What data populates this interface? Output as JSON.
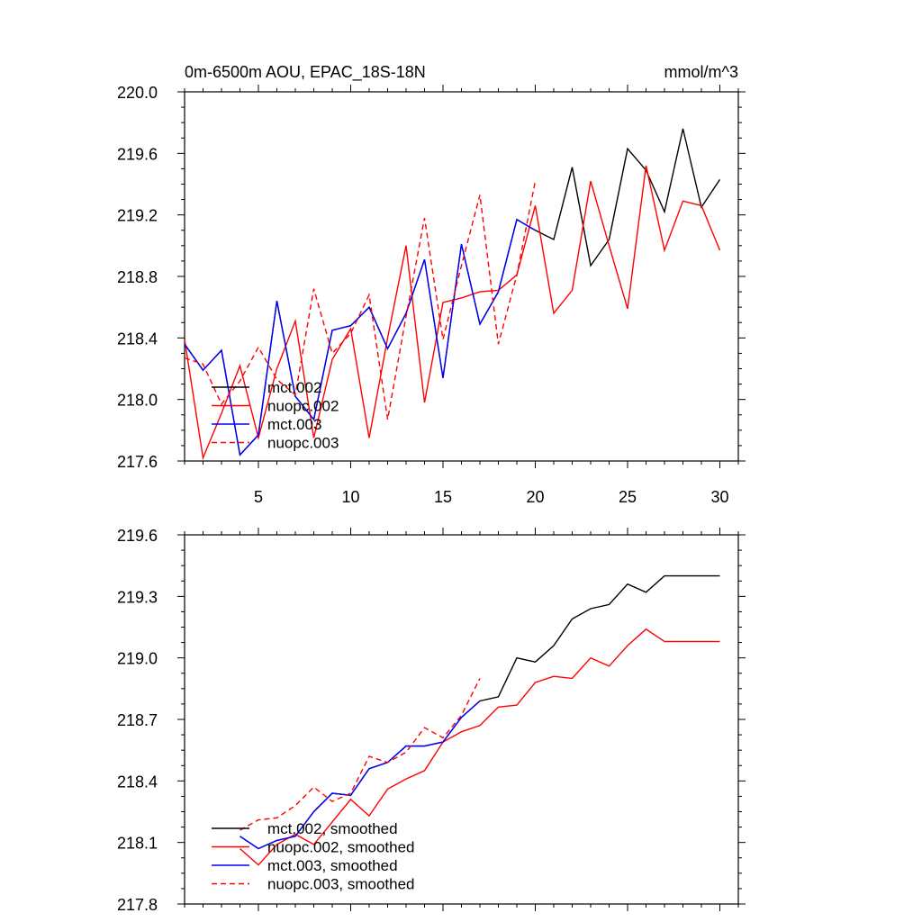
{
  "chart_data": [
    {
      "type": "line",
      "title": "0m-6500m AOU, EPAC_18S-18N",
      "units": "mmol/m^3",
      "xlabel": "",
      "ylabel": "",
      "xlim": [
        1,
        31
      ],
      "ylim": [
        217.6,
        220.0
      ],
      "x_ticks": [
        5,
        10,
        15,
        20,
        25,
        30
      ],
      "y_ticks": [
        "217.6",
        "218.0",
        "218.4",
        "218.8",
        "219.2",
        "219.6",
        "220.0"
      ],
      "legend_position": "bottom-left",
      "series": [
        {
          "name": "mct.002",
          "color": "#000000",
          "dash": "solid",
          "x": [
            1,
            2,
            3,
            4,
            5,
            6,
            7,
            8,
            9,
            10,
            11,
            12,
            13,
            14,
            15,
            16,
            17,
            18,
            19,
            20,
            21,
            22,
            23,
            24,
            25,
            26,
            27,
            28,
            29,
            30
          ],
          "values": [
            218.36,
            218.19,
            218.32,
            217.64,
            217.77,
            218.64,
            218.02,
            217.87,
            218.45,
            218.48,
            218.6,
            218.33,
            218.56,
            218.91,
            218.14,
            219.01,
            218.49,
            218.7,
            219.17,
            219.1,
            219.04,
            219.51,
            218.87,
            219.04,
            219.63,
            219.49,
            219.22,
            219.76,
            219.25,
            219.43
          ]
        },
        {
          "name": "nuopc.002",
          "color": "#ff0000",
          "dash": "solid",
          "x": [
            1,
            2,
            3,
            4,
            5,
            6,
            7,
            8,
            9,
            10,
            11,
            12,
            13,
            14,
            15,
            16,
            17,
            18,
            19,
            20,
            21,
            22,
            23,
            24,
            25,
            26,
            27,
            28,
            29,
            30
          ],
          "values": [
            218.39,
            217.62,
            217.91,
            218.22,
            217.75,
            218.2,
            218.51,
            217.75,
            218.26,
            218.46,
            217.75,
            218.4,
            219.0,
            217.98,
            218.63,
            218.66,
            218.7,
            218.71,
            218.81,
            219.26,
            218.56,
            218.71,
            219.42,
            219.0,
            218.59,
            219.52,
            218.97,
            219.29,
            219.26,
            218.97
          ]
        },
        {
          "name": "mct.003",
          "color": "#0000ff",
          "dash": "solid",
          "x": [
            1,
            2,
            3,
            4,
            5,
            6,
            7,
            8,
            9,
            10,
            11,
            12,
            13,
            14,
            15,
            16,
            17,
            18,
            19,
            20
          ],
          "values": [
            218.36,
            218.19,
            218.32,
            217.64,
            217.77,
            218.64,
            218.02,
            217.87,
            218.45,
            218.48,
            218.6,
            218.33,
            218.56,
            218.91,
            218.14,
            219.01,
            218.49,
            218.7,
            219.17,
            219.1
          ]
        },
        {
          "name": "nuopc.003",
          "color": "#ff0000",
          "dash": "dashed",
          "x": [
            1,
            2,
            3,
            4,
            5,
            6,
            7,
            8,
            9,
            10,
            11,
            12,
            13,
            14,
            15,
            16,
            17,
            18,
            19,
            20
          ],
          "values": [
            218.27,
            218.23,
            217.97,
            218.12,
            218.34,
            218.13,
            218.03,
            218.72,
            218.3,
            218.43,
            218.68,
            217.87,
            218.54,
            219.18,
            218.39,
            218.87,
            219.33,
            218.36,
            218.81,
            219.42
          ]
        }
      ]
    },
    {
      "type": "line",
      "title": "",
      "xlabel": "",
      "ylabel": "",
      "xlim": [
        1,
        31
      ],
      "ylim": [
        217.8,
        219.6
      ],
      "x_ticks": [
        5,
        10,
        15,
        20,
        25,
        30
      ],
      "y_ticks": [
        "217.8",
        "218.1",
        "218.4",
        "218.7",
        "219.0",
        "219.3",
        "219.6"
      ],
      "legend_position": "bottom-left",
      "series": [
        {
          "name": "mct.002, smoothed",
          "color": "#000000",
          "dash": "solid",
          "x": [
            4,
            5,
            6,
            7,
            8,
            9,
            10,
            11,
            12,
            13,
            14,
            15,
            16,
            17,
            18,
            19,
            20,
            21,
            22,
            23,
            24,
            25,
            26,
            27,
            28,
            29,
            30
          ],
          "values": [
            218.13,
            218.07,
            218.11,
            218.13,
            218.25,
            218.34,
            218.33,
            218.46,
            218.49,
            218.57,
            218.57,
            218.59,
            218.71,
            218.79,
            218.81,
            219.0,
            218.98,
            219.06,
            219.19,
            219.24,
            219.26,
            219.36,
            219.32,
            219.4,
            219.4,
            219.4,
            219.4
          ]
        },
        {
          "name": "nuopc.002, smoothed",
          "color": "#ff0000",
          "dash": "solid",
          "x": [
            4,
            5,
            6,
            7,
            8,
            9,
            10,
            11,
            12,
            13,
            14,
            15,
            16,
            17,
            18,
            19,
            20,
            21,
            22,
            23,
            24,
            25,
            26,
            27,
            28,
            29,
            30
          ],
          "values": [
            218.07,
            217.99,
            218.09,
            218.14,
            218.09,
            218.2,
            218.31,
            218.23,
            218.36,
            218.41,
            218.45,
            218.59,
            218.64,
            218.67,
            218.76,
            218.77,
            218.88,
            218.91,
            218.9,
            219.0,
            218.96,
            219.06,
            219.14,
            219.08,
            219.08,
            219.08,
            219.08
          ]
        },
        {
          "name": "mct.003, smoothed",
          "color": "#0000ff",
          "dash": "solid",
          "x": [
            4,
            5,
            6,
            7,
            8,
            9,
            10,
            11,
            12,
            13,
            14,
            15,
            16,
            17
          ],
          "values": [
            218.13,
            218.07,
            218.11,
            218.13,
            218.25,
            218.34,
            218.33,
            218.46,
            218.49,
            218.57,
            218.57,
            218.59,
            218.71,
            218.79
          ]
        },
        {
          "name": "nuopc.003, smoothed",
          "color": "#ff0000",
          "dash": "dashed",
          "x": [
            4,
            5,
            6,
            7,
            8,
            9,
            10,
            11,
            12,
            13,
            14,
            15,
            16,
            17
          ],
          "values": [
            218.16,
            218.21,
            218.22,
            218.28,
            218.37,
            218.3,
            218.34,
            218.52,
            218.49,
            218.54,
            218.66,
            218.61,
            218.72,
            218.9
          ]
        }
      ]
    }
  ]
}
